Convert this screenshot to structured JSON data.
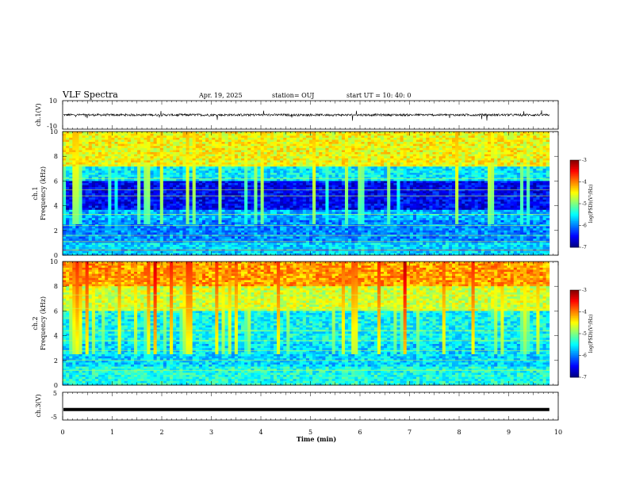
{
  "header": {
    "title": "VLF Spectra",
    "date": "Apr. 19, 2025",
    "station": "station= OUJ",
    "start": "start  UT =   10: 40: 0"
  },
  "chart_data": [
    {
      "type": "line",
      "panel": "ch1-waveform",
      "ylabel": "ch.1(V)",
      "ylim": [
        -10,
        10
      ],
      "yticks": [
        "10",
        "-10"
      ],
      "xlim": [
        0,
        10
      ],
      "series": [
        {
          "values_description_free": true,
          "baseline": 0,
          "data_end_x": 9.82
        }
      ]
    },
    {
      "type": "heatmap",
      "panel": "ch1-spectrogram",
      "ylabel": "ch.1",
      "ylabel2": "Frequency (kHz)",
      "ylim": [
        0,
        10
      ],
      "yticks": [
        "0",
        "2",
        "4",
        "6",
        "8",
        "10"
      ],
      "xlim": [
        0,
        10
      ],
      "data_end_x": 9.82,
      "colorbar": {
        "label": "log(PSD)(V²/Hz)",
        "range": [
          -7,
          -3
        ],
        "ticks": [
          "-3",
          "-4",
          "-5",
          "-6",
          "-7"
        ]
      }
    },
    {
      "type": "heatmap",
      "panel": "ch2-spectrogram",
      "ylabel": "ch.2",
      "ylabel2": "Frequency (kHz)",
      "ylim": [
        0,
        10
      ],
      "yticks": [
        "0",
        "2",
        "4",
        "6",
        "8",
        "10"
      ],
      "xlim": [
        0,
        10
      ],
      "data_end_x": 9.82,
      "colorbar": {
        "label": "log(PSD)(V²/Hz)",
        "range": [
          -7,
          -3
        ],
        "ticks": [
          "-3",
          "-4",
          "-5",
          "-6",
          "-7"
        ]
      }
    },
    {
      "type": "line",
      "panel": "ch3-waveform",
      "ylabel": "ch.3(V)",
      "ylim": [
        -5,
        5
      ],
      "yticks": [
        "5",
        "-5"
      ],
      "xlim": [
        0,
        10
      ],
      "series": [
        {
          "baseline": -1.2,
          "data_end_x": 9.82
        }
      ]
    }
  ],
  "x_axis": {
    "label": "Time (min)",
    "ticks": [
      "0",
      "1",
      "2",
      "3",
      "4",
      "5",
      "6",
      "7",
      "8",
      "9",
      "10"
    ]
  }
}
